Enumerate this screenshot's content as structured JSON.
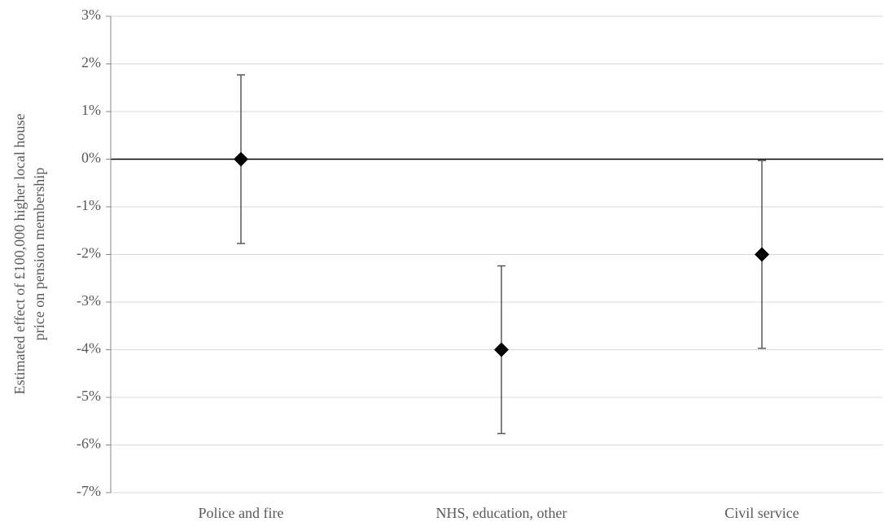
{
  "chart_data": {
    "type": "errorbar",
    "ylabel": [
      "Estimated effect of £100,000 higher local house",
      "price on pension membership"
    ],
    "categories": [
      "Police and fire",
      "NHS, education, other",
      "Civil service"
    ],
    "values": [
      0,
      -4,
      -2
    ],
    "errors": [
      1.77,
      1.76,
      1.97
    ],
    "color": "#000000",
    "error_color": "#595959",
    "ylim": [
      -7,
      3
    ],
    "yticks": [
      {
        "value": -7,
        "label": "-7%"
      },
      {
        "value": -6,
        "label": "-6%"
      },
      {
        "value": -5,
        "label": "-5%"
      },
      {
        "value": -4,
        "label": "-4%"
      },
      {
        "value": -3,
        "label": "-3%"
      },
      {
        "value": -2,
        "label": "-2%"
      },
      {
        "value": -1,
        "label": "-1%"
      },
      {
        "value": 0,
        "label": "0%"
      },
      {
        "value": 1,
        "label": "1%"
      },
      {
        "value": 2,
        "label": "2%"
      },
      {
        "value": 3,
        "label": "3%"
      }
    ],
    "grid": true
  }
}
